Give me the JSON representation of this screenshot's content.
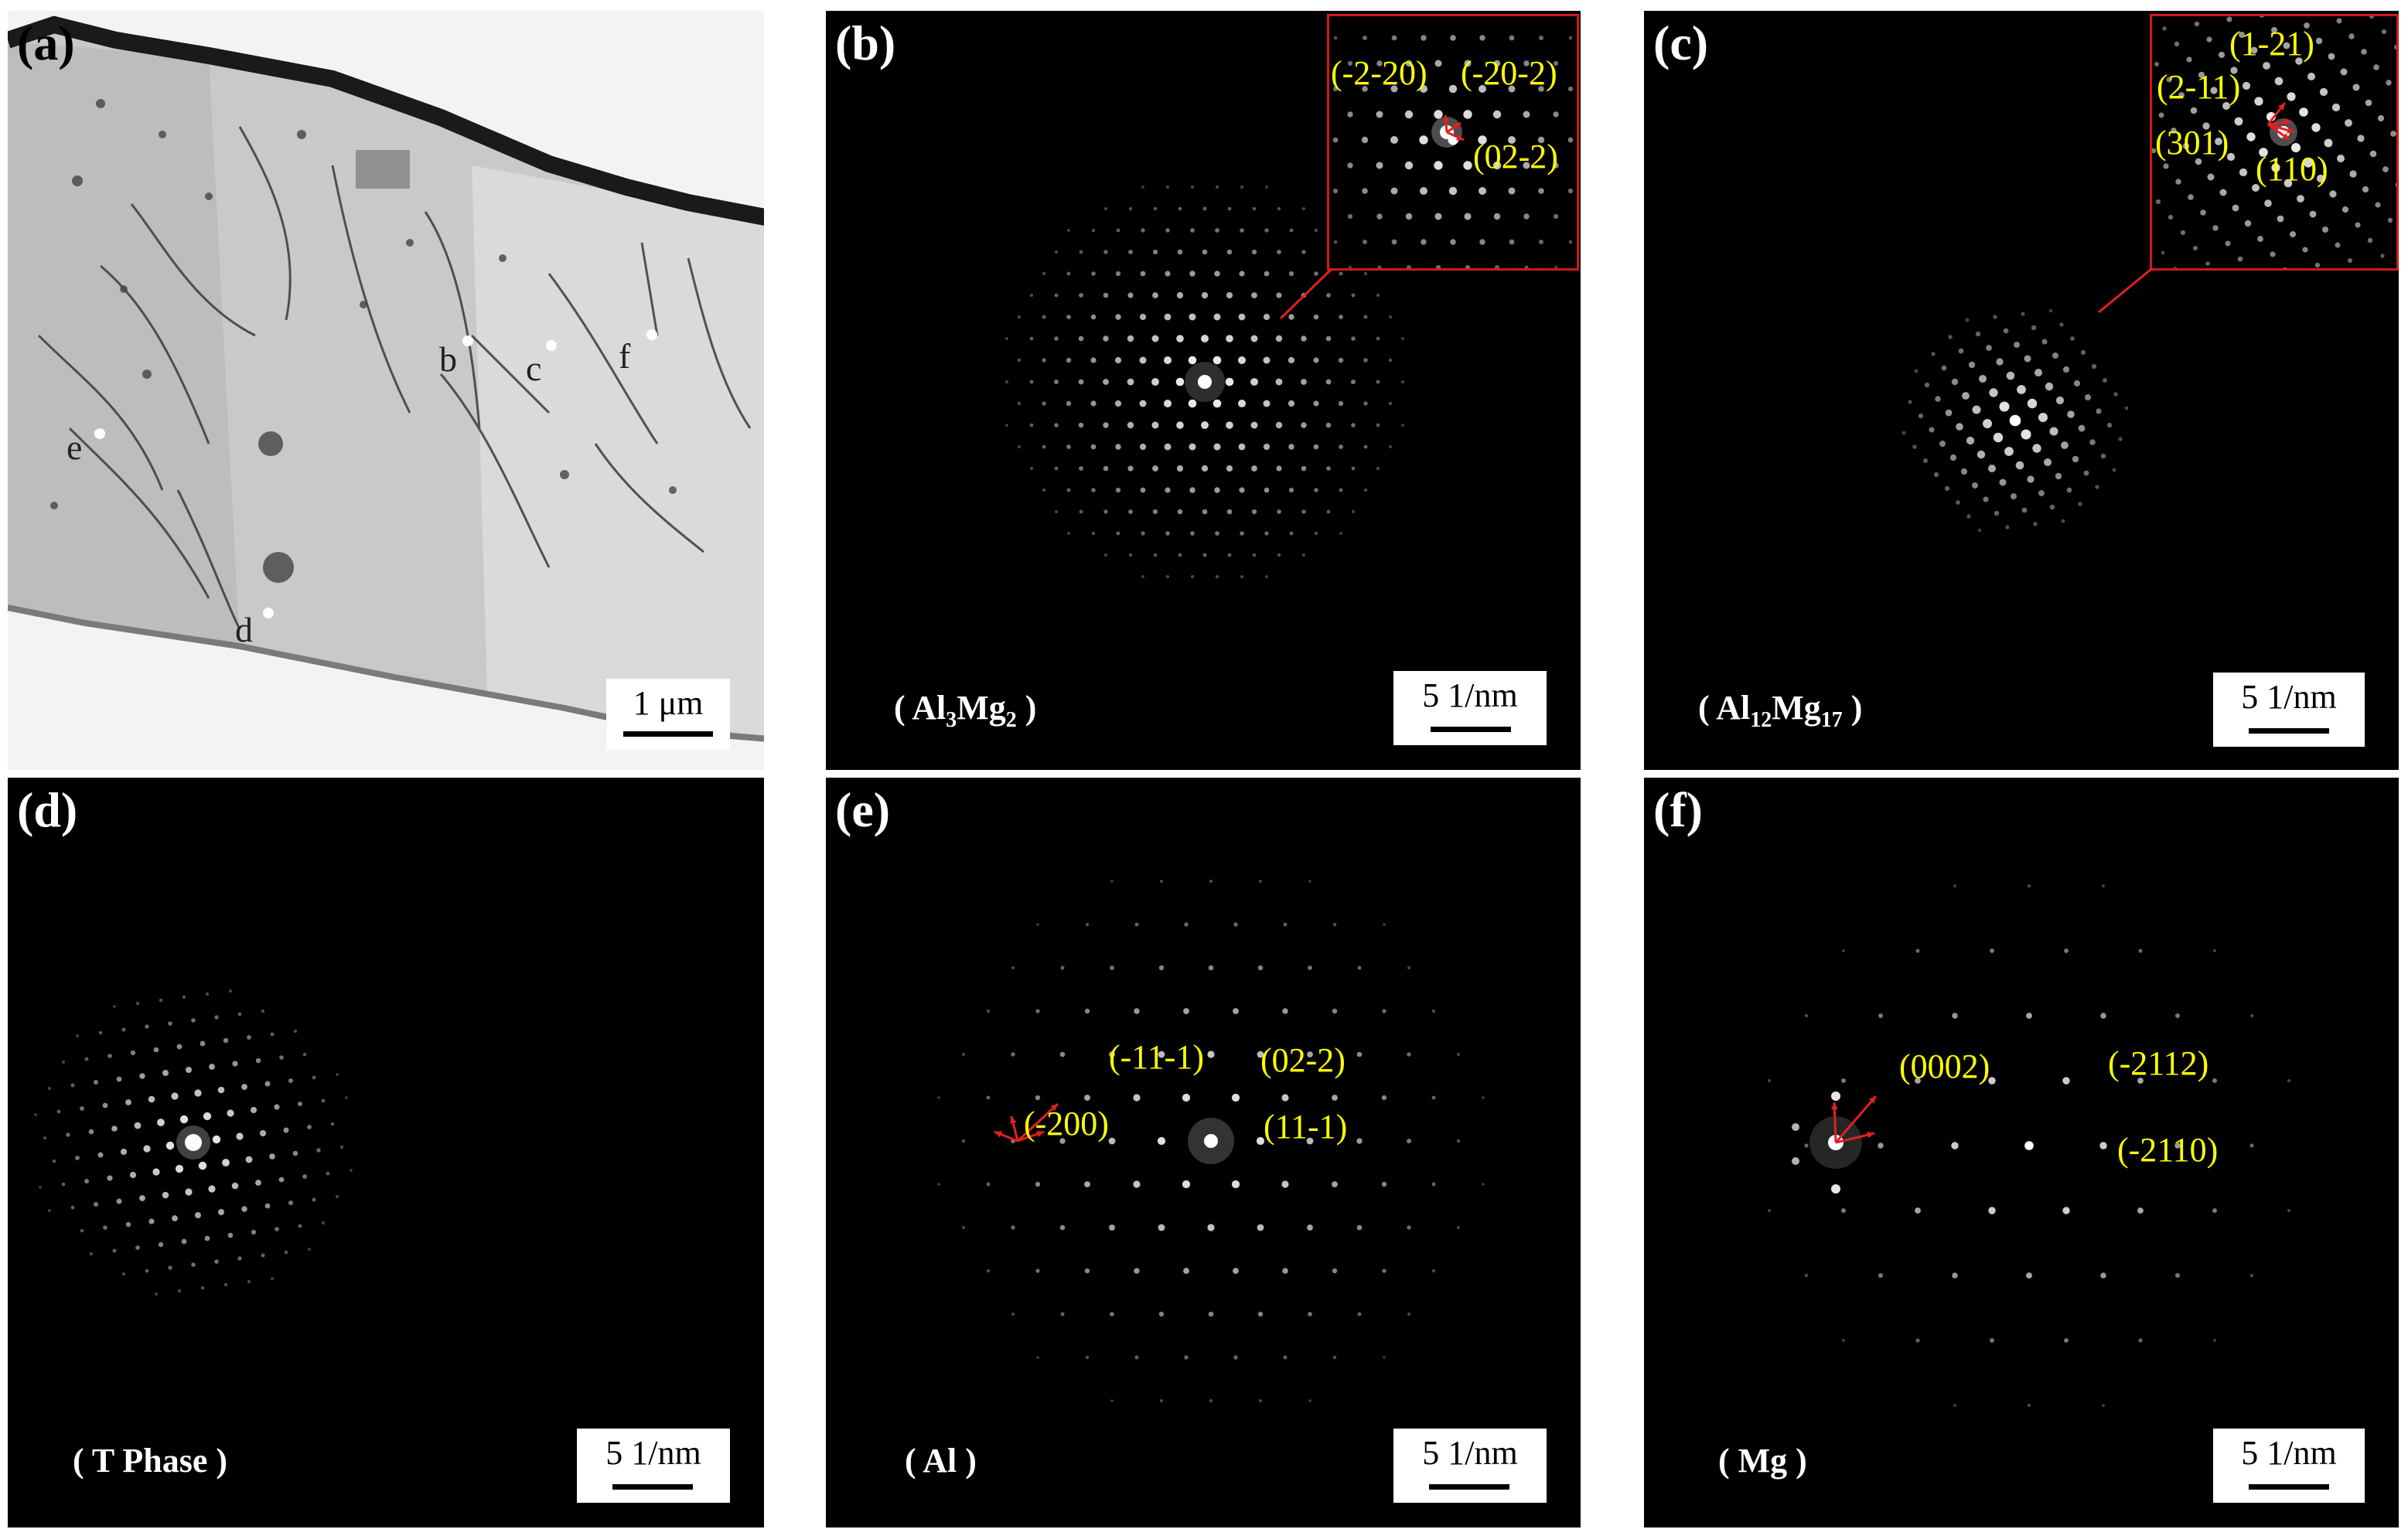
{
  "panels": {
    "a": {
      "label": "(a)",
      "scale": "1 μm",
      "points": [
        "b",
        "c",
        "f",
        "e",
        "d"
      ]
    },
    "b": {
      "label": "(b)",
      "phase_pre": "( Al",
      "phase_s1": "3",
      "phase_mid": "Mg",
      "phase_s2": "2",
      "phase_post": " )",
      "scale": "5 1/nm",
      "indices": [
        "(-2-20)",
        "(-20-2)",
        "(02-2)"
      ]
    },
    "c": {
      "label": "(c)",
      "phase_pre": "( Al",
      "phase_s1": "12",
      "phase_mid": "Mg",
      "phase_s2": "17",
      "phase_post": " )",
      "scale": "5 1/nm",
      "indices": [
        "(1-21)",
        "(2-11)",
        "(301)",
        "(110)"
      ]
    },
    "d": {
      "label": "(d)",
      "phase": "( T Phase )",
      "scale": "5 1/nm"
    },
    "e": {
      "label": "(e)",
      "phase": "( Al )",
      "scale": "5 1/nm",
      "indices": [
        "(-11-1)",
        "(02-2)",
        "(-200)",
        "(11-1)"
      ]
    },
    "f": {
      "label": "(f)",
      "phase": "( Mg )",
      "scale": "5 1/nm",
      "indices": [
        "(0002)",
        "(-2112)",
        "(-2110)"
      ]
    }
  },
  "colors": {
    "index_text": "#ffff00",
    "arrow": "#e02020"
  }
}
